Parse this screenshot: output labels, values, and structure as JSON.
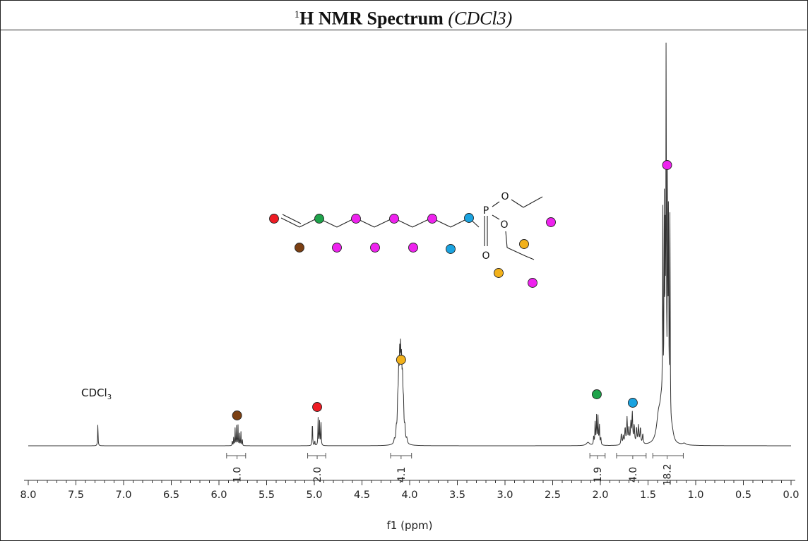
{
  "title": {
    "prefix_sup": "1",
    "main": "H NMR Spectrum",
    "solvent": "(CDCl3)"
  },
  "colors": {
    "red": "#ee1c24",
    "brown": "#7b3f12",
    "green": "#1ea34a",
    "magenta": "#ee22ee",
    "blue": "#1aa3e0",
    "orange": "#f2b11a",
    "line": "#333333"
  },
  "chart_data": {
    "type": "line",
    "title": "1H NMR Spectrum (CDCl3)",
    "xlabel": "f1 (ppm)",
    "ylabel": "",
    "xlim": [
      8.0,
      0.0
    ],
    "x_reversed": true,
    "x_ticks": [
      "8.0",
      "7.5",
      "7.0",
      "6.5",
      "6.0",
      "5.5",
      "5.0",
      "4.5",
      "4.0",
      "3.5",
      "3.0",
      "2.5",
      "2.0",
      "1.5",
      "1.0",
      "0.5",
      "0.0"
    ],
    "grid": false,
    "solvent_peak": {
      "label": "CDCl3",
      "ppm": 7.27
    },
    "signals": [
      {
        "ppm": 5.81,
        "integral": "1.0",
        "marker": "brown",
        "multiplet": "ddt"
      },
      {
        "ppm": 4.97,
        "integral": "2.0",
        "marker": "red",
        "multiplet": "m"
      },
      {
        "ppm": 4.09,
        "integral": "4.1",
        "marker": "orange",
        "multiplet": "m"
      },
      {
        "ppm": 2.03,
        "integral": "1.9",
        "marker": "green",
        "multiplet": "q"
      },
      {
        "ppm": 1.66,
        "integral": "4.0",
        "marker": "blue",
        "multiplet": "m"
      },
      {
        "ppm": 1.3,
        "integral": "18.2",
        "marker": "magenta",
        "multiplet": "m"
      }
    ],
    "integral_labels": [
      "1.0",
      "2.0",
      "4.1",
      "1.9",
      "4.0",
      "18.2"
    ]
  },
  "structure": {
    "atoms": [
      "P",
      "O",
      "O",
      "O"
    ]
  }
}
